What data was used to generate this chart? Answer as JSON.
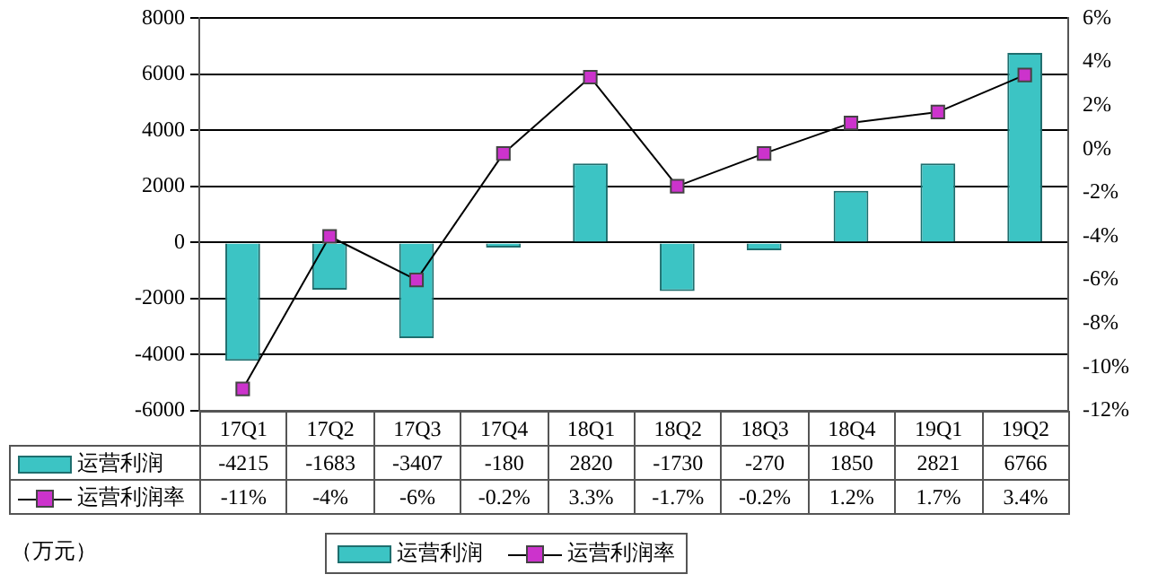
{
  "chart_data": {
    "type": "bar",
    "categories": [
      "17Q1",
      "17Q2",
      "17Q3",
      "17Q4",
      "18Q1",
      "18Q2",
      "18Q3",
      "18Q4",
      "19Q1",
      "19Q2"
    ],
    "series": [
      {
        "name": "运营利润",
        "type": "bar",
        "color": "#3cc4c4",
        "values": [
          -4215,
          -1683,
          -3407,
          -180,
          2820,
          -1730,
          -270,
          1850,
          2821,
          6766
        ],
        "value_labels": [
          "-4215",
          "-1683",
          "-3407",
          "-180",
          "2820",
          "-1730",
          "-270",
          "1850",
          "2821",
          "6766"
        ]
      },
      {
        "name": "运营利润率",
        "type": "line",
        "axis": "y2",
        "color": "#cc33cc",
        "marker": "square",
        "values": [
          -11,
          -4,
          -6,
          -0.2,
          3.3,
          -1.7,
          -0.2,
          1.2,
          1.7,
          3.4
        ],
        "value_labels": [
          "-11%",
          "-4%",
          "-6%",
          "-0.2%",
          "3.3%",
          "-1.7%",
          "-0.2%",
          "1.2%",
          "1.7%",
          "3.4%"
        ]
      }
    ],
    "ylim": [
      -6000,
      8000
    ],
    "yticks": [
      -6000,
      -4000,
      -2000,
      0,
      2000,
      4000,
      6000,
      8000
    ],
    "y2lim": [
      -12,
      6
    ],
    "y2ticks": [
      {
        "value": -12,
        "label": "-12%"
      },
      {
        "value": -10,
        "label": "-10%"
      },
      {
        "value": -8,
        "label": "-8%"
      },
      {
        "value": -6,
        "label": "-6%"
      },
      {
        "value": -4,
        "label": "-4%"
      },
      {
        "value": -2,
        "label": "-2%"
      },
      {
        "value": 0,
        "label": "0%"
      },
      {
        "value": 2,
        "label": "2%"
      },
      {
        "value": 4,
        "label": "4%"
      },
      {
        "value": 6,
        "label": "6%"
      }
    ],
    "grid": "y",
    "legend": "bottom",
    "annotations": [
      "（万元）"
    ]
  }
}
